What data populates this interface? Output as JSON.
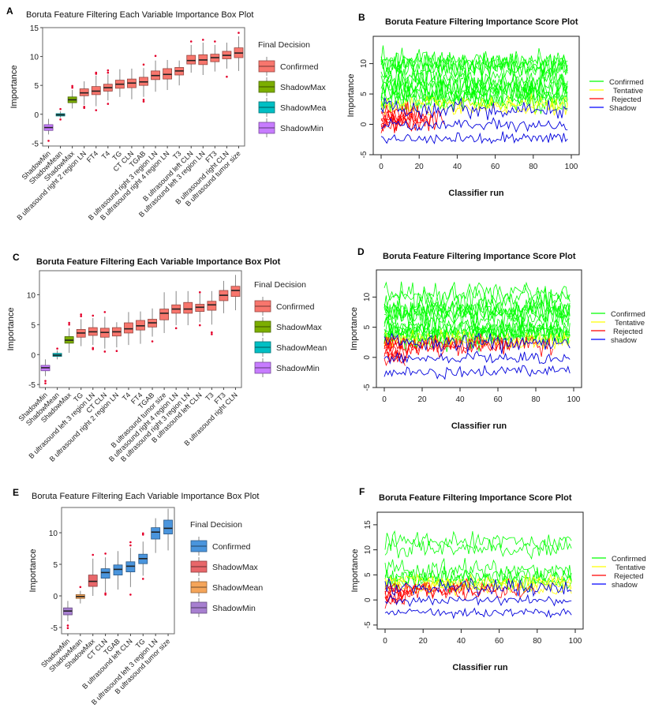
{
  "chart_data": [
    {
      "panel": "A",
      "type": "box",
      "title": "Boruta Feature Filtering Each Variable Importance Box Plot",
      "xlabel": "",
      "ylabel": "Importance",
      "ylim": [
        -5.5,
        15
      ],
      "yticks": [
        -5,
        0,
        5,
        10,
        15
      ],
      "legend": {
        "title": "Final Decision",
        "position": "right",
        "entries": [
          {
            "label": "Confirmed",
            "color": "#f8766d"
          },
          {
            "label": "ShadowMax",
            "color": "#7cae00"
          },
          {
            "label": "ShadowMea",
            "color": "#00bfc4"
          },
          {
            "label": "ShadowMin",
            "color": "#c77cff"
          }
        ]
      },
      "boxes": [
        {
          "label": "ShadowMin",
          "group": "ShadowMin",
          "min": -3.5,
          "q1": -2.8,
          "median": -2.3,
          "q3": -1.8,
          "max": -0.8,
          "outliers": [
            -4.6
          ]
        },
        {
          "label": "ShadowMean",
          "group": "ShadowMea",
          "min": -0.6,
          "q1": -0.3,
          "median": -0.1,
          "q3": 0.1,
          "max": 0.5,
          "outliers": [
            0.9,
            -0.9
          ]
        },
        {
          "label": "ShadowMax",
          "group": "ShadowMax",
          "min": 1.0,
          "q1": 2.0,
          "median": 2.5,
          "q3": 3.0,
          "max": 4.2,
          "outliers": [
            4.6,
            4.9
          ]
        },
        {
          "label": "B ultrasound right 2 region LN",
          "group": "Confirmed",
          "min": 1.6,
          "q1": 3.2,
          "median": 3.7,
          "q3": 4.4,
          "max": 5.7,
          "outliers": [
            1.1,
            1.3
          ]
        },
        {
          "label": "FT4",
          "group": "Confirmed",
          "min": 1.4,
          "q1": 3.4,
          "median": 4.0,
          "q3": 4.8,
          "max": 6.7,
          "outliers": [
            0.7,
            7.0,
            7.2
          ]
        },
        {
          "label": "T4",
          "group": "Confirmed",
          "min": 2.4,
          "q1": 4.0,
          "median": 4.6,
          "q3": 5.2,
          "max": 6.9,
          "outliers": [
            1.8,
            7.2,
            7.6
          ]
        },
        {
          "label": "TG",
          "group": "Confirmed",
          "min": 3.0,
          "q1": 4.5,
          "median": 5.2,
          "q3": 5.9,
          "max": 7.8,
          "outliers": []
        },
        {
          "label": "CT CLN",
          "group": "Confirmed",
          "min": 2.6,
          "q1": 4.6,
          "median": 5.4,
          "q3": 6.1,
          "max": 7.9,
          "outliers": []
        },
        {
          "label": "TGAB",
          "group": "Confirmed",
          "min": 3.0,
          "q1": 5.0,
          "median": 5.6,
          "q3": 6.4,
          "max": 8.0,
          "outliers": [
            2.2,
            2.5,
            8.6
          ]
        },
        {
          "label": "B ultrasound right 3 region LN",
          "group": "Confirmed",
          "min": 3.9,
          "q1": 6.0,
          "median": 6.7,
          "q3": 7.5,
          "max": 9.3,
          "outliers": [
            10.1
          ]
        },
        {
          "label": "B ultrasound right 4 region LN",
          "group": "Confirmed",
          "min": 4.2,
          "q1": 6.1,
          "median": 6.9,
          "q3": 7.9,
          "max": 9.4,
          "outliers": []
        },
        {
          "label": "T3",
          "group": "Confirmed",
          "min": 5.0,
          "q1": 6.8,
          "median": 7.5,
          "q3": 8.1,
          "max": 9.3,
          "outliers": []
        },
        {
          "label": "B ultrasound left CLN",
          "group": "Confirmed",
          "min": 7.2,
          "q1": 8.7,
          "median": 9.3,
          "q3": 10.2,
          "max": 12.0,
          "outliers": [
            12.6
          ]
        },
        {
          "label": "B ultrasound left 3 region LN",
          "group": "Confirmed",
          "min": 6.8,
          "q1": 8.6,
          "median": 9.4,
          "q3": 10.3,
          "max": 12.4,
          "outliers": [
            12.9
          ]
        },
        {
          "label": "FT3",
          "group": "Confirmed",
          "min": 7.4,
          "q1": 9.1,
          "median": 9.8,
          "q3": 10.4,
          "max": 12.0,
          "outliers": [
            12.6
          ]
        },
        {
          "label": "B ultrasound right CLN",
          "group": "Confirmed",
          "min": 7.9,
          "q1": 9.6,
          "median": 10.2,
          "q3": 10.9,
          "max": 12.4,
          "outliers": [
            6.5
          ]
        },
        {
          "label": "B ultrasound tumor size",
          "group": "Confirmed",
          "min": 7.5,
          "q1": 9.8,
          "median": 10.6,
          "q3": 11.5,
          "max": 13.5,
          "outliers": [
            14.1
          ]
        }
      ]
    },
    {
      "panel": "B",
      "type": "line",
      "title": "Boruta Feature Filtering Importance Score Plot",
      "xlabel": "Classifier run",
      "ylabel": "Importance",
      "xlim": [
        0,
        100
      ],
      "ylim": [
        -5,
        14.5
      ],
      "xticks": [
        0,
        20,
        40,
        60,
        80,
        100
      ],
      "yticks": [
        -5,
        0,
        5,
        10
      ],
      "legend": {
        "position": "right",
        "entries": [
          {
            "label": "Confirmed",
            "color": "#00ff00"
          },
          {
            "label": "Tentative",
            "color": "#ffff00"
          },
          {
            "label": "Rejected",
            "color": "#ff0000"
          },
          {
            "label": "Shadow",
            "color": "#0000ff"
          }
        ]
      },
      "runs": 99,
      "series": {
        "confirmed_means": [
          3.7,
          4.0,
          4.6,
          5.2,
          5.4,
          5.6,
          6.7,
          6.9,
          7.5,
          9.3,
          9.4,
          9.8,
          10.2,
          10.6
        ],
        "tentative_means": [
          2.8,
          3.2
        ],
        "rejected_means": [
          0.2,
          0.6,
          1.0,
          1.4,
          0.0,
          0.8,
          1.8,
          1.2
        ],
        "rejected_last_run": [
          12,
          18,
          22,
          26,
          30,
          34,
          16,
          24
        ],
        "shadow_means": [
          2.5,
          -0.1,
          -2.3
        ]
      }
    },
    {
      "panel": "C",
      "type": "box",
      "title": "Boruta Feature Filtering Each Variable Importance Box Plot",
      "xlabel": "",
      "ylabel": "Importance",
      "ylim": [
        -5.5,
        14
      ],
      "yticks": [
        -5,
        0,
        5,
        10
      ],
      "legend": {
        "title": "Final Decision",
        "position": "right",
        "entries": [
          {
            "label": "Confirmed",
            "color": "#f8766d"
          },
          {
            "label": "ShadowMax",
            "color": "#7cae00"
          },
          {
            "label": "ShadowMean",
            "color": "#00bfc4"
          },
          {
            "label": "ShadowMin",
            "color": "#c77cff"
          }
        ]
      },
      "boxes": [
        {
          "label": "ShadowMin",
          "group": "ShadowMin",
          "min": -3.6,
          "q1": -2.7,
          "median": -2.2,
          "q3": -1.8,
          "max": -0.8,
          "outliers": [
            -4.4,
            -4.8
          ]
        },
        {
          "label": "ShadowMean",
          "group": "ShadowMean",
          "min": -0.8,
          "q1": -0.3,
          "median": -0.1,
          "q3": 0.2,
          "max": 0.7,
          "outliers": [
            1.0
          ]
        },
        {
          "label": "ShadowMax",
          "group": "ShadowMax",
          "min": 0.3,
          "q1": 1.9,
          "median": 2.4,
          "q3": 3.0,
          "max": 4.4,
          "outliers": [
            5.0,
            5.3
          ]
        },
        {
          "label": "TG",
          "group": "Confirmed",
          "min": 1.4,
          "q1": 2.9,
          "median": 3.6,
          "q3": 4.2,
          "max": 5.9,
          "outliers": [
            6.4,
            6.7
          ]
        },
        {
          "label": "B ultrasound left 3 region LN",
          "group": "Confirmed",
          "min": 1.6,
          "q1": 3.2,
          "median": 3.8,
          "q3": 4.5,
          "max": 6.1,
          "outliers": [
            0.9,
            1.1,
            6.5
          ]
        },
        {
          "label": "CT CLN",
          "group": "Confirmed",
          "min": 1.0,
          "q1": 2.9,
          "median": 3.7,
          "q3": 4.4,
          "max": 6.3,
          "outliers": [
            0.5,
            7.1
          ]
        },
        {
          "label": "B ultrasound right 2 region LN",
          "group": "Confirmed",
          "min": 1.2,
          "q1": 3.1,
          "median": 3.8,
          "q3": 4.5,
          "max": 5.4,
          "outliers": [
            0.6
          ]
        },
        {
          "label": "T4",
          "group": "Confirmed",
          "min": 1.6,
          "q1": 3.6,
          "median": 4.3,
          "q3": 5.3,
          "max": 7.1,
          "outliers": []
        },
        {
          "label": "FT4",
          "group": "Confirmed",
          "min": 1.8,
          "q1": 4.1,
          "median": 4.8,
          "q3": 5.7,
          "max": 7.2,
          "outliers": []
        },
        {
          "label": "TGAB",
          "group": "Confirmed",
          "min": 3.0,
          "q1": 4.6,
          "median": 5.3,
          "q3": 5.9,
          "max": 7.7,
          "outliers": [
            2.2
          ]
        },
        {
          "label": "B ultrasound tumor size",
          "group": "Confirmed",
          "min": 3.6,
          "q1": 5.8,
          "median": 6.9,
          "q3": 7.6,
          "max": 10.4,
          "outliers": []
        },
        {
          "label": "B ultrasound right 4 region LN",
          "group": "Confirmed",
          "min": 4.9,
          "q1": 6.9,
          "median": 7.6,
          "q3": 8.3,
          "max": 10.6,
          "outliers": [
            4.4
          ]
        },
        {
          "label": "B ultrasound right 3 region LN",
          "group": "Confirmed",
          "min": 4.9,
          "q1": 6.9,
          "median": 7.6,
          "q3": 8.7,
          "max": 10.6,
          "outliers": []
        },
        {
          "label": "B ultrasound left CLN",
          "group": "Confirmed",
          "min": 5.4,
          "q1": 7.2,
          "median": 7.9,
          "q3": 8.4,
          "max": 10.2,
          "outliers": [
            4.9,
            10.4
          ]
        },
        {
          "label": "T3",
          "group": "Confirmed",
          "min": 5.0,
          "q1": 7.4,
          "median": 8.3,
          "q3": 8.9,
          "max": 10.6,
          "outliers": [
            3.4,
            3.7
          ]
        },
        {
          "label": "FT3",
          "group": "Confirmed",
          "min": 6.9,
          "q1": 9.0,
          "median": 9.9,
          "q3": 10.7,
          "max": 12.3,
          "outliers": []
        },
        {
          "label": "B ultrasound right CLN",
          "group": "Confirmed",
          "min": 7.4,
          "q1": 9.7,
          "median": 10.7,
          "q3": 11.4,
          "max": 13.3,
          "outliers": []
        }
      ]
    },
    {
      "panel": "D",
      "type": "line",
      "title": "Boruta Feature Filtering Importance Score Plot",
      "xlabel": "Classifier run",
      "ylabel": "Importance",
      "xlim": [
        0,
        100
      ],
      "ylim": [
        -5,
        14.5
      ],
      "xticks": [
        0,
        20,
        40,
        60,
        80,
        100
      ],
      "yticks": [
        -5,
        0,
        5,
        10
      ],
      "legend": {
        "position": "right",
        "entries": [
          {
            "label": "Confirmed",
            "color": "#00ff00"
          },
          {
            "label": "Tentative",
            "color": "#ffff00"
          },
          {
            "label": "Rejected",
            "color": "#ff0000"
          },
          {
            "label": "shadow",
            "color": "#0000ff"
          }
        ]
      },
      "runs": 99,
      "series": {
        "confirmed_means": [
          3.6,
          3.8,
          3.7,
          3.8,
          4.3,
          4.8,
          5.3,
          6.9,
          7.6,
          7.6,
          7.9,
          8.3,
          9.9,
          10.7
        ],
        "tentative_means": [
          2.6,
          3.0
        ],
        "rejected_means": [
          0.2,
          0.6,
          1.0,
          1.4,
          0.0,
          2.0,
          2.2,
          1.8
        ],
        "rejected_last_run": [
          12,
          14,
          10,
          16,
          12,
          90,
          68,
          40
        ],
        "shadow_means": [
          2.6,
          -0.1,
          -2.4
        ]
      }
    },
    {
      "panel": "E",
      "type": "box",
      "title": "Boruta Feature Filtering Each Variable Importance Box Plot",
      "xlabel": "",
      "ylabel": "Importance",
      "ylim": [
        -6,
        14
      ],
      "yticks": [
        -5,
        0,
        5,
        10
      ],
      "legend": {
        "title": "Final Decision",
        "position": "right",
        "entries": [
          {
            "label": "Confirmed",
            "color": "#4a95dd"
          },
          {
            "label": "ShadowMax",
            "color": "#e8676a"
          },
          {
            "label": "ShadowMean",
            "color": "#f5a55a"
          },
          {
            "label": "ShadowMin",
            "color": "#a77fd0"
          }
        ]
      },
      "boxes": [
        {
          "label": "ShadowMin",
          "group": "ShadowMin",
          "min": -4.0,
          "q1": -3.0,
          "median": -2.4,
          "q3": -1.9,
          "max": -0.8,
          "outliers": [
            -4.7,
            -5.1
          ]
        },
        {
          "label": "ShadowMean",
          "group": "ShadowMean",
          "min": -1.2,
          "q1": -0.4,
          "median": -0.1,
          "q3": 0.2,
          "max": 0.8,
          "outliers": [
            1.4
          ]
        },
        {
          "label": "ShadowMax",
          "group": "ShadowMax",
          "min": 0.0,
          "q1": 1.5,
          "median": 2.3,
          "q3": 3.3,
          "max": 5.9,
          "outliers": [
            6.5
          ]
        },
        {
          "label": "CT CLN",
          "group": "Confirmed",
          "min": 0.6,
          "q1": 2.8,
          "median": 3.7,
          "q3": 4.3,
          "max": 6.1,
          "outliers": [
            0.2,
            0.4,
            6.7
          ]
        },
        {
          "label": "TGAB",
          "group": "Confirmed",
          "min": 1.0,
          "q1": 3.3,
          "median": 4.2,
          "q3": 4.9,
          "max": 7.1,
          "outliers": []
        },
        {
          "label": "B ultrasound left CLN",
          "group": "Confirmed",
          "min": 1.4,
          "q1": 3.8,
          "median": 4.7,
          "q3": 5.4,
          "max": 7.6,
          "outliers": [
            0.2,
            8.0,
            8.5
          ]
        },
        {
          "label": "TG",
          "group": "Confirmed",
          "min": 3.2,
          "q1": 5.1,
          "median": 5.9,
          "q3": 6.6,
          "max": 8.6,
          "outliers": [
            2.7,
            9.7,
            9.9
          ]
        },
        {
          "label": "B ultrasound left 3 region LN",
          "group": "Confirmed",
          "min": 6.8,
          "q1": 9.0,
          "median": 10.1,
          "q3": 10.8,
          "max": 12.3,
          "outliers": []
        },
        {
          "label": "B ultrasound tumor size",
          "group": "Confirmed",
          "min": 7.2,
          "q1": 9.8,
          "median": 10.7,
          "q3": 12.0,
          "max": 13.8,
          "outliers": []
        }
      ]
    },
    {
      "panel": "F",
      "type": "line",
      "title": "Boruta Feature Filtering Importance Score Plot",
      "xlabel": "Classifier run",
      "ylabel": "Importance",
      "xlim": [
        0,
        100
      ],
      "ylim": [
        -5.8,
        17.5
      ],
      "xticks": [
        0,
        20,
        40,
        60,
        80,
        100
      ],
      "yticks": [
        -5,
        0,
        5,
        10,
        15
      ],
      "legend": {
        "position": "right",
        "entries": [
          {
            "label": "Confirmed",
            "color": "#00ff00"
          },
          {
            "label": "Tentative",
            "color": "#ffff00"
          },
          {
            "label": "Rejected",
            "color": "#ff0000"
          },
          {
            "label": "shadow",
            "color": "#0000ff"
          }
        ]
      },
      "runs": 99,
      "series": {
        "confirmed_means": [
          3.6,
          4.2,
          4.7,
          5.9,
          10.1,
          11.5
        ],
        "tentative_means": [
          2.4,
          3.0,
          3.6
        ],
        "rejected_means": [
          0.2,
          0.6,
          1.0,
          1.4,
          0.0,
          2.2,
          2.0,
          1.6
        ],
        "rejected_last_run": [
          12,
          14,
          10,
          16,
          12,
          80,
          60,
          40
        ],
        "shadow_means": [
          2.4,
          -0.1,
          -2.5
        ]
      }
    }
  ]
}
